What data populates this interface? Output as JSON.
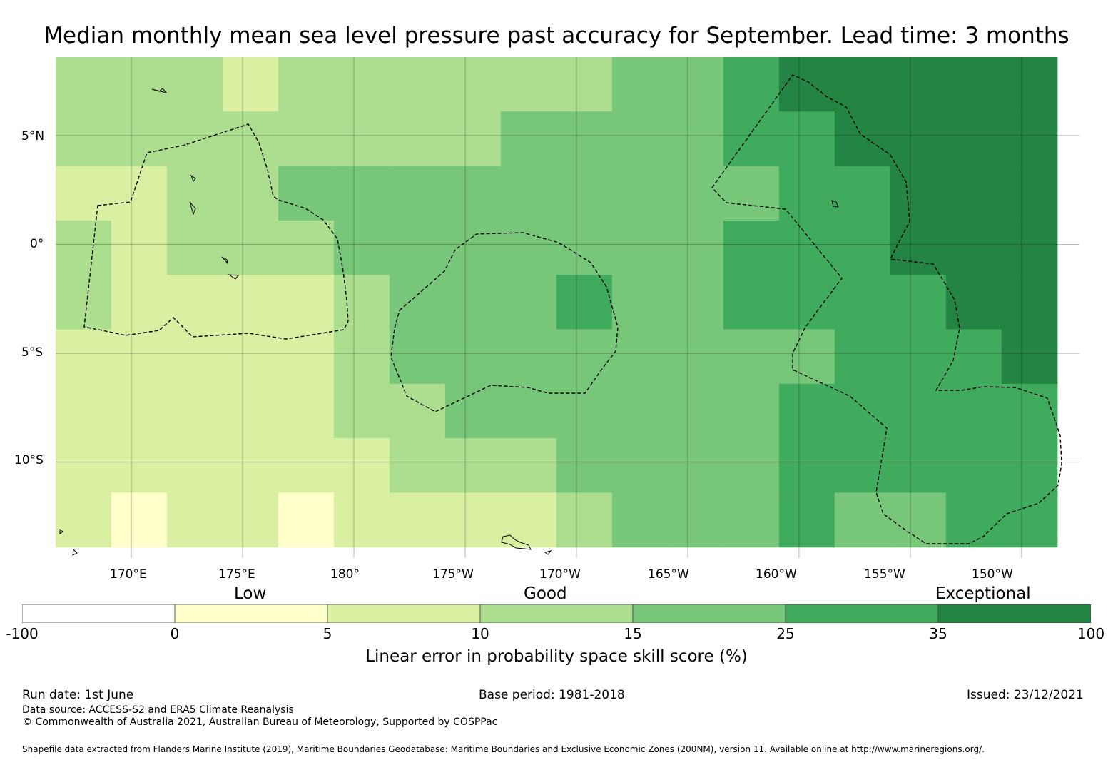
{
  "title": "Median monthly mean sea level pressure past accuracy for September. Lead time: 3 months",
  "lat_labels": [
    "5°N",
    "0°",
    "5°S",
    "10°S"
  ],
  "lon_labels": [
    "170°E",
    "175°E",
    "180°",
    "175°W",
    "170°W",
    "165°W",
    "160°W",
    "155°W",
    "150°W"
  ],
  "categories": [
    "Low",
    "Good",
    "Exceptional"
  ],
  "colorbar": {
    "ticks": [
      "-100",
      "0",
      "5",
      "10",
      "15",
      "25",
      "35",
      "100"
    ],
    "colors": [
      "#ffffff",
      "#ffffcc",
      "#d9f0a3",
      "#addd8e",
      "#78c679",
      "#41ab5d",
      "#238443"
    ],
    "label": "Linear error in probability space skill score (%)"
  },
  "footer": {
    "run_date": "Run date: 1st June",
    "base_period": "Base period: 1981-2018",
    "issued": "Issued: 23/12/2021",
    "data_source": "Data source: ACCESS-S2 and ERA5 Climate Reanalysis",
    "copyright": "© Commonwealth of Australia 2021, Australian Bureau of Meteorology, Supported by COSPPac",
    "shapefile": "Shapefile data extracted from Flanders Marine Institute (2019), Maritime Boundaries Geodatabase: Maritime Boundaries and Exclusive Economic Zones (200NM), version 11. Available online at http://www.marineregions.org/."
  },
  "chart_data": {
    "type": "heatmap",
    "title": "Median monthly mean sea level pressure past accuracy for September. Lead time: 3 months",
    "xlabel": "",
    "ylabel": "",
    "lon_range": [
      166.6,
      212.6
    ],
    "lat_range": [
      -14.4,
      8.6
    ],
    "x_ticks": [
      170,
      175,
      180,
      185,
      190,
      195,
      200,
      205,
      210
    ],
    "y_ticks": [
      5,
      0,
      -5,
      -10
    ],
    "grid": true,
    "colorbar_boundaries": [
      -100,
      0,
      5,
      10,
      15,
      25,
      35,
      100
    ],
    "colorbar_label": "Linear error in probability space skill score (%)",
    "cell_degrees": 2.5,
    "cell_lons": [
      166.6,
      169.1,
      171.6,
      174.1,
      176.6,
      179.1,
      181.6,
      184.1,
      186.6,
      189.1,
      191.6,
      194.1,
      196.6,
      199.1,
      201.6,
      204.1,
      206.6,
      209.1
    ],
    "cell_lats": [
      8.6,
      6.1,
      3.6,
      1.1,
      -1.4,
      -3.9,
      -6.4,
      -8.9,
      -11.4
    ],
    "grid_values": [
      [
        12,
        12,
        12,
        9,
        12,
        12,
        12,
        12,
        12,
        12,
        20,
        20,
        30,
        40,
        40,
        40,
        40,
        40
      ],
      [
        12,
        12,
        12,
        12,
        12,
        12,
        12,
        12,
        20,
        20,
        20,
        20,
        30,
        30,
        40,
        40,
        40,
        40
      ],
      [
        7,
        7,
        12,
        12,
        20,
        20,
        20,
        20,
        20,
        20,
        20,
        20,
        20,
        30,
        30,
        40,
        40,
        40
      ],
      [
        12,
        7,
        12,
        12,
        12,
        20,
        20,
        20,
        20,
        20,
        20,
        20,
        30,
        30,
        30,
        40,
        40,
        40
      ],
      [
        12,
        7,
        7,
        7,
        7,
        12,
        20,
        20,
        20,
        30,
        20,
        20,
        30,
        30,
        30,
        30,
        40,
        40
      ],
      [
        7,
        7,
        7,
        7,
        7,
        12,
        20,
        20,
        20,
        20,
        20,
        20,
        20,
        20,
        30,
        30,
        30,
        40
      ],
      [
        7,
        7,
        7,
        7,
        7,
        12,
        12,
        20,
        20,
        20,
        20,
        20,
        20,
        30,
        30,
        30,
        30,
        30
      ],
      [
        7,
        7,
        7,
        7,
        7,
        7,
        12,
        12,
        12,
        20,
        20,
        20,
        20,
        30,
        30,
        30,
        30,
        30
      ],
      [
        7,
        3,
        7,
        7,
        3,
        7,
        7,
        7,
        7,
        12,
        20,
        20,
        20,
        30,
        20,
        20,
        30,
        30
      ]
    ]
  }
}
